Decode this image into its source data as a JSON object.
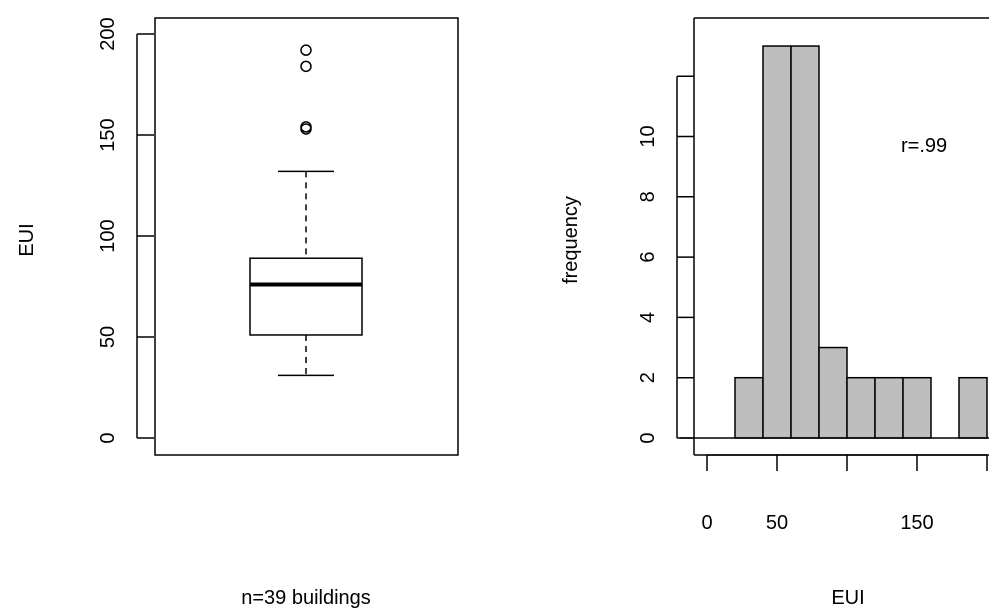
{
  "chart_data": [
    {
      "type": "box",
      "title": "",
      "ylabel": "EUI",
      "xlabel": "n=39 buildings",
      "ylim": [
        -8,
        210
      ],
      "yticks": [
        0,
        50,
        100,
        150,
        200
      ],
      "ytick_labels": [
        "0",
        "50",
        "100",
        "150",
        "200"
      ],
      "box": {
        "whisker_low": 31,
        "q1": 51,
        "median": 76,
        "q3": 89,
        "whisker_high": 132
      },
      "outliers": [
        192,
        184,
        153,
        154
      ]
    },
    {
      "type": "bar",
      "title": "",
      "ylabel": "frequency",
      "xlabel": "EUI",
      "annotation": "r=.99",
      "ylim": [
        0,
        13
      ],
      "yticks": [
        0,
        2,
        4,
        6,
        8,
        10,
        12
      ],
      "ytick_labels": [
        "0",
        "2",
        "4",
        "6",
        "8",
        "10",
        ""
      ],
      "xticks": [
        0,
        50,
        100,
        150,
        200
      ],
      "xtick_labels": [
        "0",
        "50",
        "",
        "150",
        ""
      ],
      "bin_width": 20,
      "bins": [
        {
          "x0": 20,
          "x1": 40,
          "count": 2
        },
        {
          "x0": 40,
          "x1": 60,
          "count": 13
        },
        {
          "x0": 60,
          "x1": 80,
          "count": 13
        },
        {
          "x0": 80,
          "x1": 100,
          "count": 3
        },
        {
          "x0": 100,
          "x1": 120,
          "count": 2
        },
        {
          "x0": 120,
          "x1": 140,
          "count": 2
        },
        {
          "x0": 140,
          "x1": 160,
          "count": 2
        },
        {
          "x0": 160,
          "x1": 180,
          "count": 0
        },
        {
          "x0": 180,
          "x1": 200,
          "count": 2
        }
      ]
    }
  ]
}
